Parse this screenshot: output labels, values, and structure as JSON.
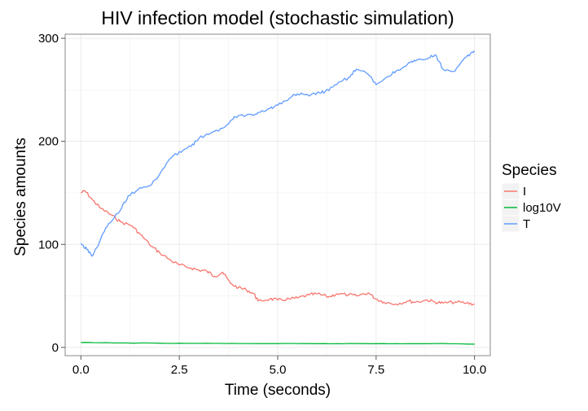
{
  "chart_data": {
    "type": "line",
    "title": "HIV infection model (stochastic simulation)",
    "xlabel": "Time (seconds)",
    "ylabel": "Species amounts",
    "xlim": [
      -0.4,
      10.4
    ],
    "ylim": [
      -8,
      304
    ],
    "x_ticks": [
      0.0,
      2.5,
      5.0,
      7.5,
      10.0
    ],
    "x_tick_labels": [
      "0.0",
      "2.5",
      "5.0",
      "7.5",
      "10.0"
    ],
    "y_ticks": [
      0,
      100,
      200,
      300
    ],
    "y_tick_labels": [
      "0",
      "100",
      "200",
      "300"
    ],
    "grid": true,
    "legend_title": "Species",
    "legend_position": "right",
    "series": [
      {
        "name": "I",
        "color": "#f8766d",
        "x": [
          0.0,
          0.1,
          0.3,
          0.5,
          0.8,
          1.0,
          1.3,
          1.5,
          1.8,
          2.0,
          2.3,
          2.5,
          2.8,
          3.0,
          3.2,
          3.4,
          3.6,
          3.8,
          4.0,
          4.2,
          4.4,
          4.5,
          4.8,
          5.0,
          5.3,
          5.5,
          5.8,
          6.0,
          6.3,
          6.5,
          6.8,
          7.0,
          7.3,
          7.5,
          7.7,
          8.0,
          8.3,
          8.5,
          8.8,
          9.0,
          9.2,
          9.5,
          9.8,
          10.0
        ],
        "y": [
          150,
          152,
          143,
          135,
          128,
          122,
          118,
          110,
          98,
          92,
          84,
          80,
          77,
          75,
          74,
          69,
          73,
          62,
          58,
          56,
          52,
          45,
          47,
          46,
          47,
          48,
          51,
          52,
          49,
          52,
          51,
          50,
          53,
          47,
          44,
          42,
          45,
          44,
          46,
          44,
          43,
          44,
          43,
          42
        ]
      },
      {
        "name": "log10V",
        "color": "#00ba38",
        "x": [
          0.0,
          1.0,
          2.0,
          3.0,
          4.0,
          5.0,
          6.0,
          7.0,
          8.0,
          9.0,
          10.0
        ],
        "y": [
          4.8,
          4.3,
          4.1,
          3.9,
          3.8,
          3.7,
          3.6,
          3.7,
          3.6,
          3.8,
          3.2
        ]
      },
      {
        "name": "T",
        "color": "#619cff",
        "x": [
          0.0,
          0.15,
          0.3,
          0.5,
          0.7,
          1.0,
          1.2,
          1.5,
          1.8,
          2.0,
          2.2,
          2.5,
          2.8,
          3.0,
          3.3,
          3.5,
          3.8,
          4.0,
          4.3,
          4.5,
          4.8,
          5.0,
          5.3,
          5.5,
          5.8,
          6.0,
          6.2,
          6.5,
          6.8,
          7.0,
          7.3,
          7.5,
          7.8,
          8.0,
          8.3,
          8.5,
          8.8,
          9.0,
          9.2,
          9.5,
          9.8,
          10.0
        ],
        "y": [
          101,
          95,
          89,
          105,
          120,
          133,
          147,
          155,
          158,
          168,
          180,
          190,
          195,
          203,
          208,
          210,
          220,
          225,
          226,
          228,
          232,
          235,
          242,
          246,
          244,
          247,
          248,
          255,
          262,
          270,
          265,
          255,
          263,
          268,
          275,
          278,
          280,
          284,
          270,
          268,
          282,
          288
        ]
      }
    ]
  }
}
